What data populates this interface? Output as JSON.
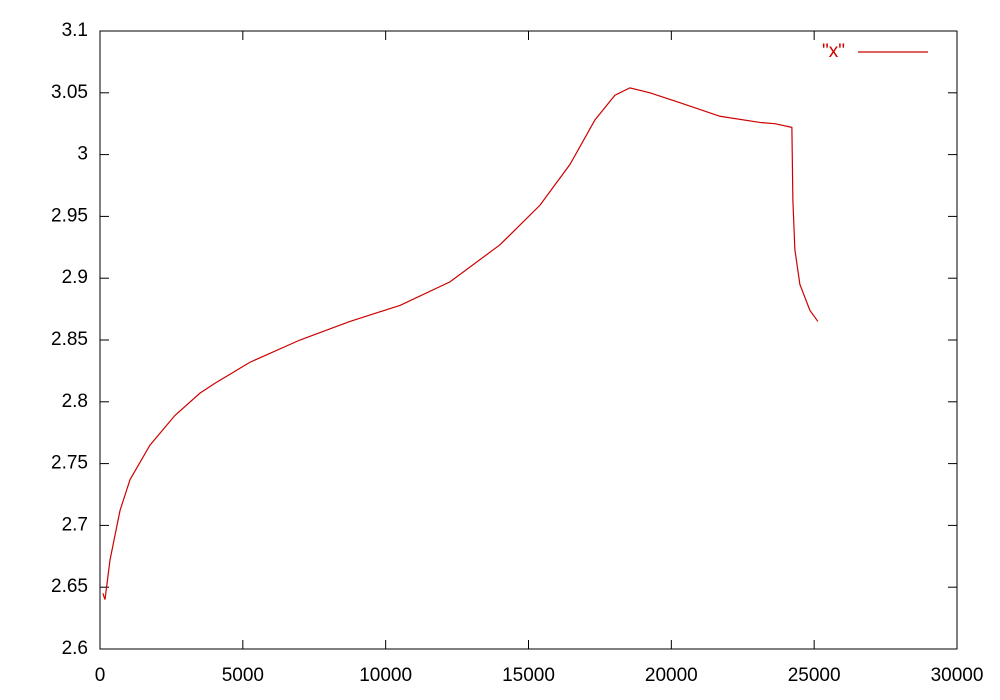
{
  "chart_data": {
    "type": "line",
    "x": [
      100,
      175,
      350,
      700,
      1050,
      1750,
      2625,
      3500,
      4025,
      5250,
      7000,
      8750,
      10500,
      12250,
      14000,
      15400,
      16450,
      17325,
      18025,
      18550,
      19250,
      20300,
      21700,
      23100,
      23625,
      24220,
      24255,
      24325,
      24500,
      24850,
      25130
    ],
    "series": [
      {
        "name": "\"x\"",
        "color": "#cc0000",
        "values": [
          2.645,
          2.64,
          2.672,
          2.712,
          2.737,
          2.765,
          2.789,
          2.807,
          2.815,
          2.832,
          2.85,
          2.865,
          2.878,
          2.897,
          2.927,
          2.959,
          2.992,
          3.028,
          3.048,
          3.054,
          3.05,
          3.042,
          3.031,
          3.026,
          3.025,
          3.022,
          2.963,
          2.923,
          2.895,
          2.874,
          2.865
        ]
      }
    ],
    "xlim": [
      0,
      30000
    ],
    "xticks": [
      0,
      5000,
      10000,
      15000,
      20000,
      25000,
      30000
    ],
    "ylim": [
      2.6,
      3.1
    ],
    "yticks": [
      2.6,
      2.65,
      2.7,
      2.75,
      2.8,
      2.85,
      2.9,
      2.95,
      3,
      3.05,
      3.1
    ],
    "legend": "top-right"
  }
}
